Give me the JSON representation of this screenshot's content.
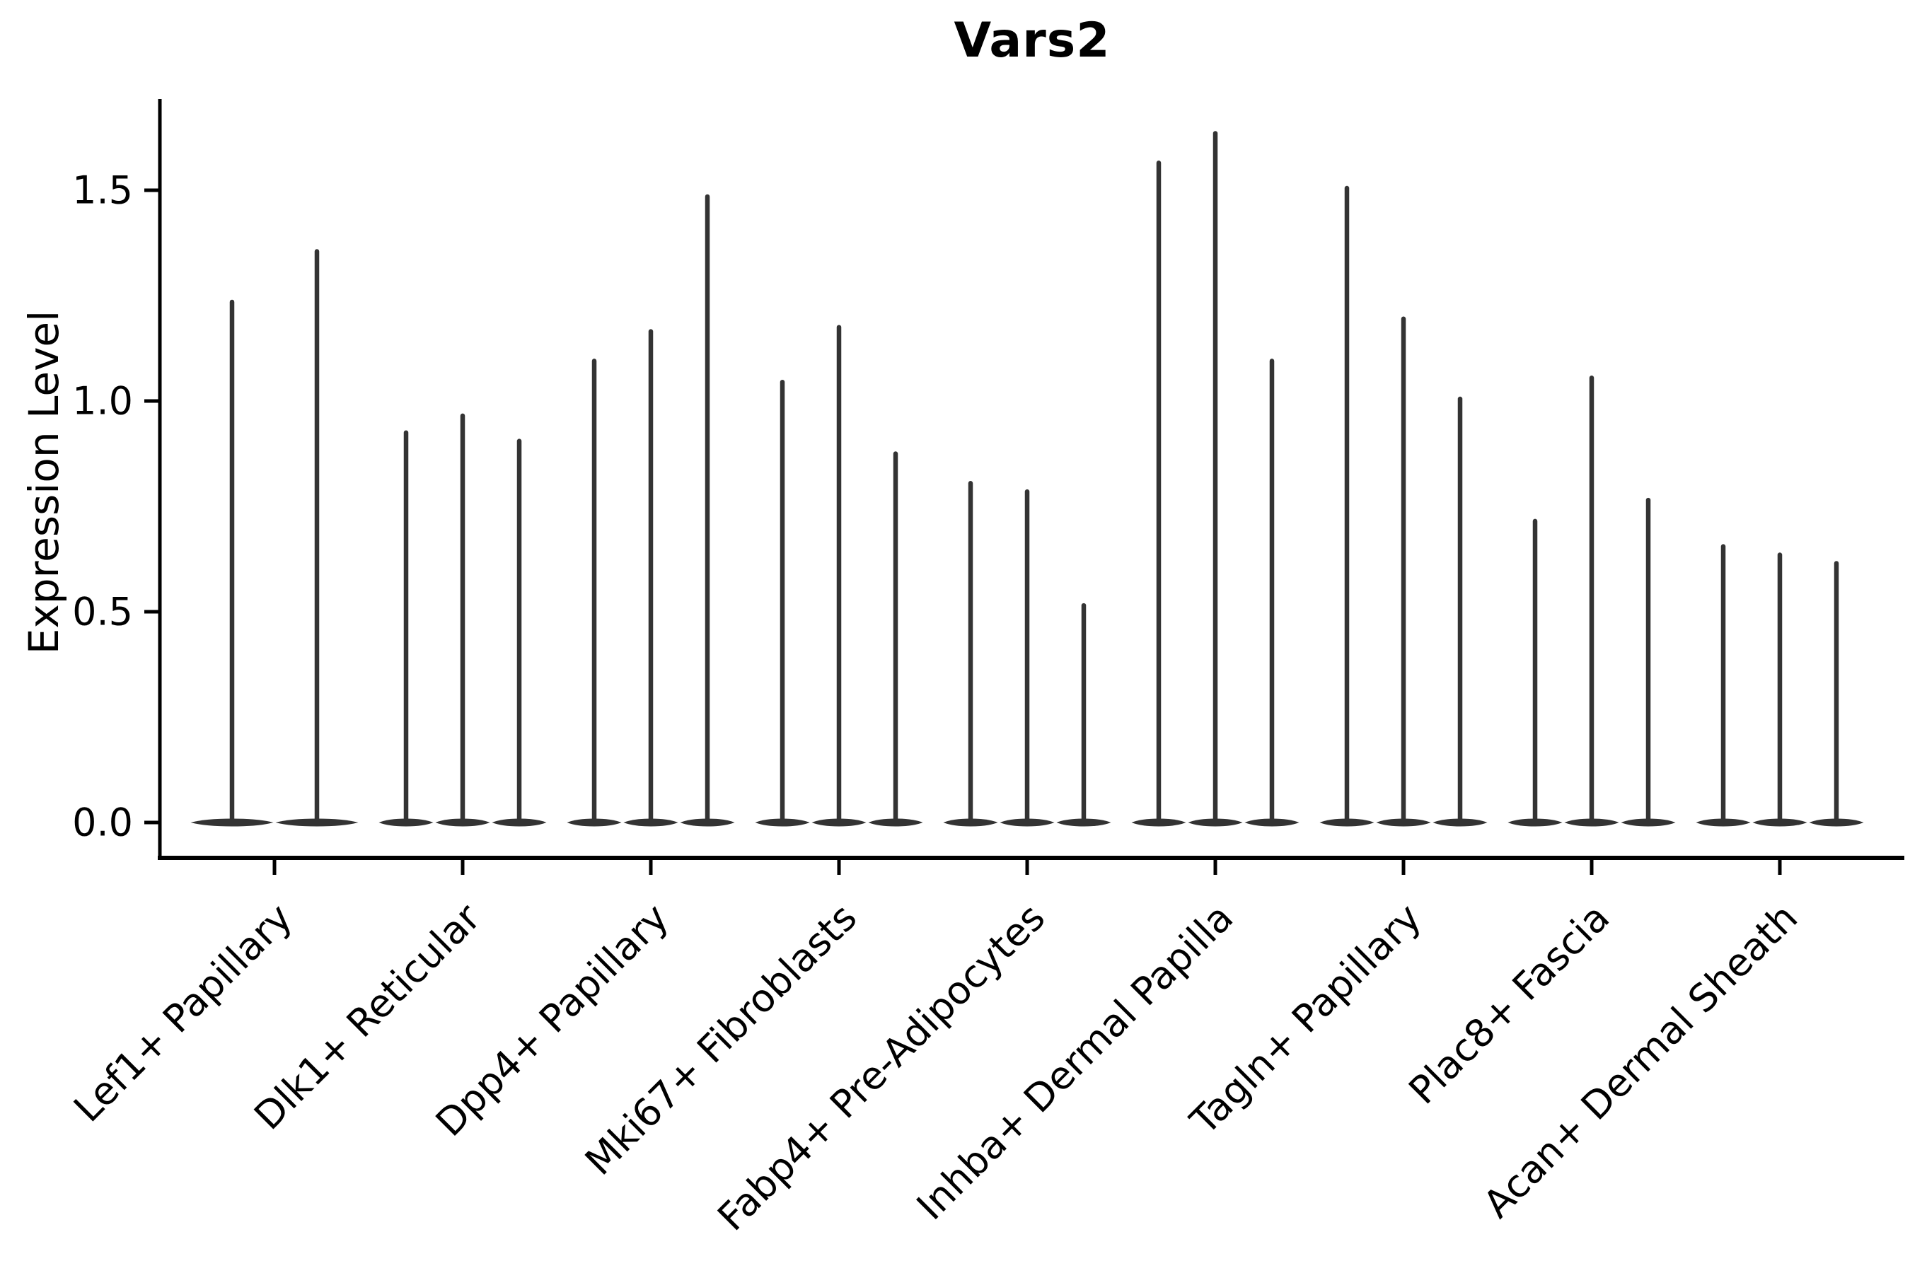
{
  "chart_data": {
    "type": "violin",
    "title": "Vars2",
    "ylabel": "Expression Level",
    "xlabel": "",
    "grid": false,
    "legend": false,
    "ylim": [
      -0.08,
      1.72
    ],
    "yticks": [
      0.0,
      0.5,
      1.0,
      1.5
    ],
    "ytick_labels": [
      "0.0",
      "0.5",
      "1.0",
      "1.5"
    ],
    "categories": [
      "Lef1+ Papillary",
      "Dlk1+ Reticular",
      "Dpp4+ Papillary",
      "Mki67+ Fibroblasts",
      "Fabp4+ Pre-Adipocytes",
      "Inhba+ Dermal Papilla",
      "Tagln+ Papillary",
      "Plac8+ Fascia",
      "Acan+ Dermal Sheath"
    ],
    "groups": [
      {
        "label": "Lef1+ Papillary",
        "violin_maxima": [
          1.24,
          1.36
        ],
        "violin_base_value": 0.0
      },
      {
        "label": "Dlk1+ Reticular",
        "violin_maxima": [
          0.93,
          0.97,
          0.91
        ],
        "violin_base_value": 0.0
      },
      {
        "label": "Dpp4+ Papillary",
        "violin_maxima": [
          1.1,
          1.17,
          1.49
        ],
        "violin_base_value": 0.0
      },
      {
        "label": "Mki67+ Fibroblasts",
        "violin_maxima": [
          1.05,
          1.18,
          0.88
        ],
        "violin_base_value": 0.0
      },
      {
        "label": "Fabp4+ Pre-Adipocytes",
        "violin_maxima": [
          0.81,
          0.79,
          0.52
        ],
        "violin_base_value": 0.0
      },
      {
        "label": "Inhba+ Dermal Papilla",
        "violin_maxima": [
          1.57,
          1.64,
          1.1
        ],
        "violin_base_value": 0.0
      },
      {
        "label": "Tagln+ Papillary",
        "violin_maxima": [
          1.51,
          1.2,
          1.01
        ],
        "violin_base_value": 0.0
      },
      {
        "label": "Plac8+ Fascia",
        "violin_maxima": [
          0.72,
          1.06,
          0.77
        ],
        "violin_base_value": 0.0
      },
      {
        "label": "Acan+ Dermal Sheath",
        "violin_maxima": [
          0.66,
          0.64,
          0.62
        ],
        "violin_base_value": 0.0
      }
    ],
    "colors": {
      "violin": "#333333",
      "axis": "#000000",
      "text": "#000000",
      "background": "#ffffff"
    }
  }
}
